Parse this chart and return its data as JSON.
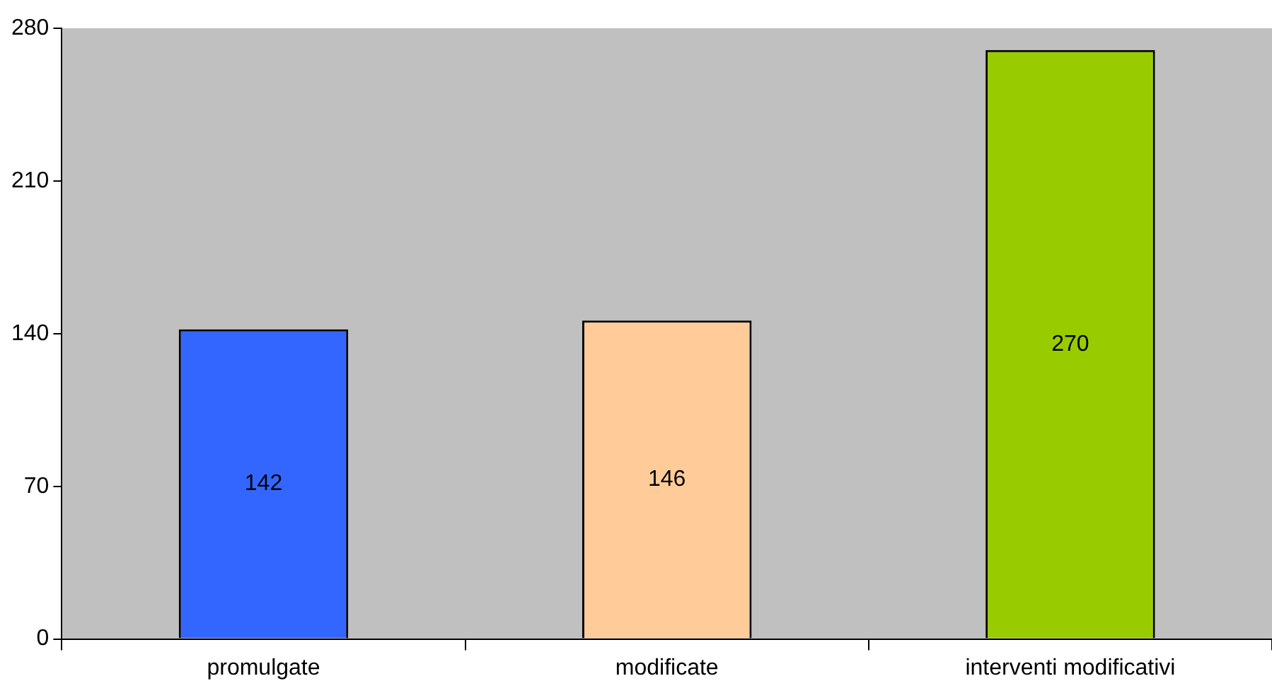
{
  "chart_data": {
    "type": "bar",
    "categories": [
      "promulgate",
      "modificate",
      "interventi modificativi"
    ],
    "values": [
      142,
      146,
      270
    ],
    "colors": [
      "#3366ff",
      "#ffcc99",
      "#99cc00"
    ],
    "ylim": [
      0,
      280
    ],
    "yticks": [
      0,
      70,
      140,
      210,
      280
    ],
    "data_labels": true
  }
}
